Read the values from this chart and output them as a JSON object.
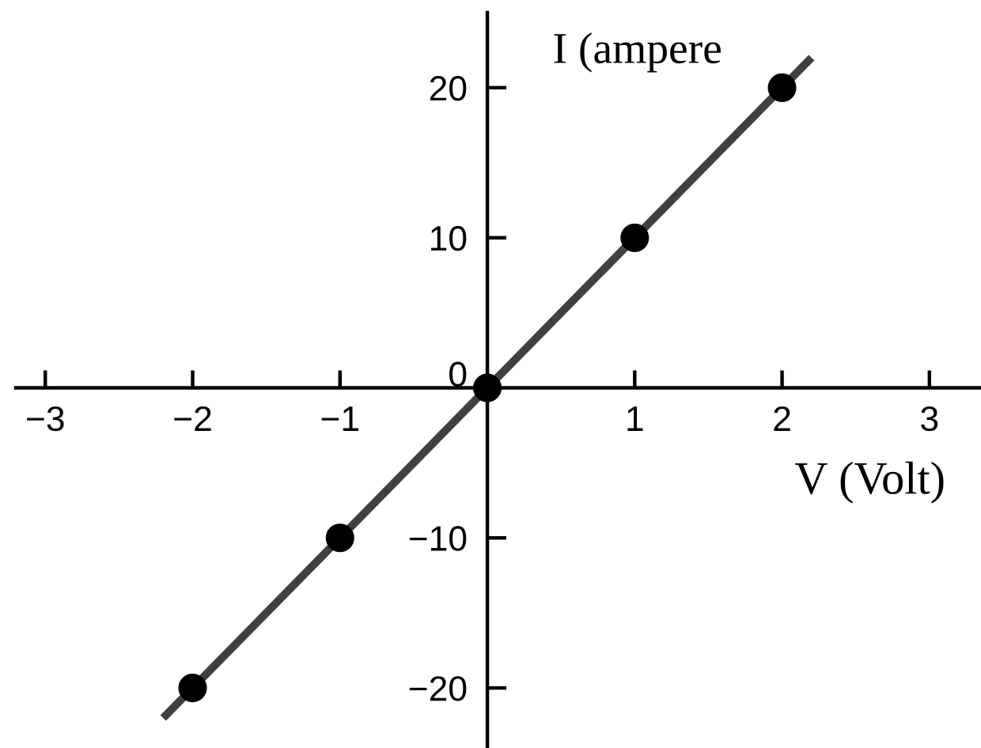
{
  "chart_data": {
    "type": "scatter",
    "xlabel": "V (Volt)",
    "ylabel": "I (ampere",
    "xlim": [
      -3.2,
      3.35
    ],
    "ylim": [
      -24,
      25
    ],
    "xticks": [
      {
        "value": -3,
        "label": "−3"
      },
      {
        "value": -2,
        "label": "−2"
      },
      {
        "value": -1,
        "label": "−1"
      },
      1,
      2,
      3
    ],
    "yticks": [
      {
        "value": -20,
        "label": "−20"
      },
      {
        "value": -10,
        "label": "−10"
      },
      0,
      10,
      20
    ],
    "grid": false,
    "legend": false,
    "marker": "circle",
    "series": [
      {
        "type": "line",
        "x": [
          -2.2,
          2.2
        ],
        "values": [
          -22,
          22
        ],
        "color": "#404040",
        "marker": "none",
        "line_style": "solid"
      },
      {
        "x": [
          -2,
          -1,
          0,
          1,
          2
        ],
        "values": [
          -20,
          -10,
          0,
          10,
          20
        ],
        "color": "#000000"
      }
    ]
  }
}
